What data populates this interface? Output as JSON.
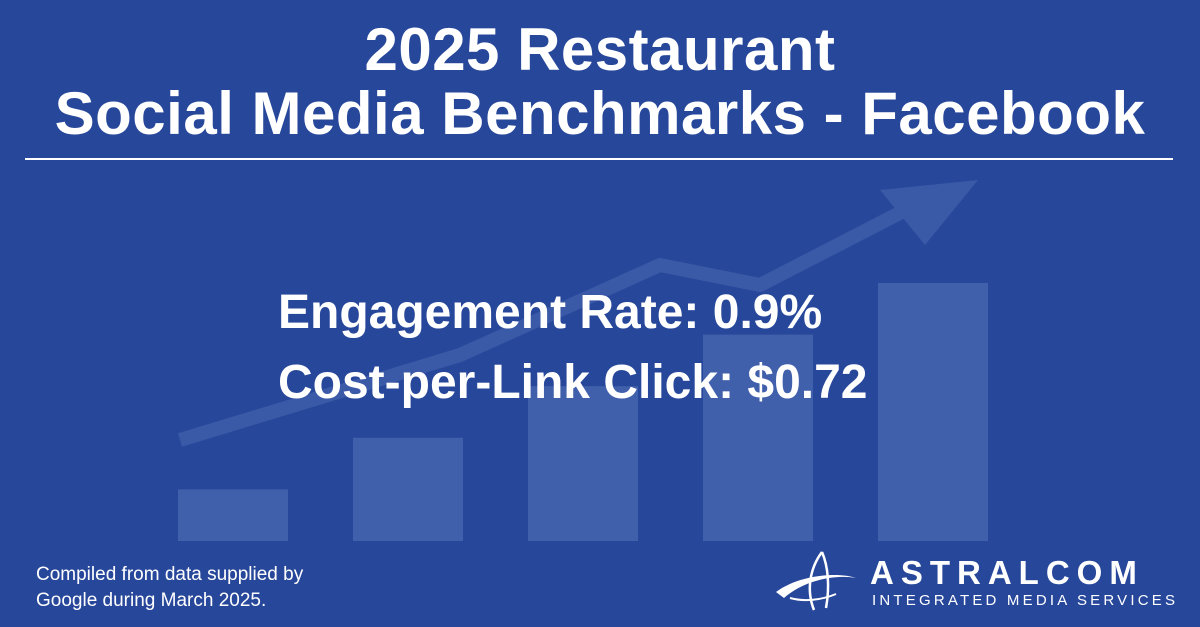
{
  "title": {
    "line1": "2025 Restaurant",
    "line2": "Social Media Benchmarks - Facebook"
  },
  "stats": {
    "engagement": "Engagement Rate: 0.9%",
    "cost_per_click": "Cost-per-Link Click: $0.72"
  },
  "footnote": {
    "line1": "Compiled from data supplied by",
    "line2": "Google during March 2025."
  },
  "logo": {
    "name": "ASTRALCOM",
    "tagline": "INTEGRATED MEDIA SERVICES",
    "icon": "orbit-swoosh-icon"
  },
  "colors": {
    "background": "#27479a",
    "graphic": "#4a68b0",
    "text": "#ffffff"
  },
  "decor": {
    "bar_levels": [
      0.2,
      0.4,
      0.6,
      0.8,
      1.0
    ],
    "icon": "trend-arrow-icon"
  }
}
